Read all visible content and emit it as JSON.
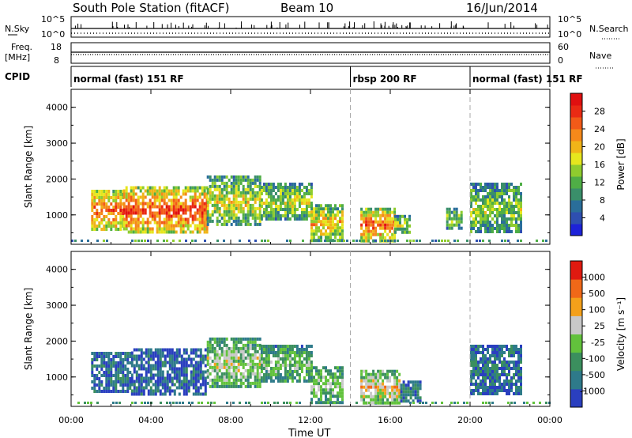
{
  "header": {
    "station": "South Pole Station (fitACF)",
    "beam": "Beam 10",
    "date": "16/Jun/2014"
  },
  "panels_top": {
    "nsky_label": "N.Sky",
    "nsky_ticks": [
      "10^5",
      "10^0"
    ],
    "nsearch_label": "N.Search",
    "nsearch_ticks": [
      "10^5",
      "10^0"
    ],
    "freq_label": "Freq.",
    "freq_unit": "[MHz]",
    "freq_ticks": [
      "18",
      "8"
    ],
    "nave_label": "Nave",
    "nave_ticks": [
      "60",
      "0"
    ],
    "cpid_label": "CPID",
    "cpid_segments": [
      {
        "label": "normal (fast) 151 RF",
        "start_h": 0,
        "end_h": 14
      },
      {
        "label": "rbsp 200 RF",
        "start_h": 14,
        "end_h": 20
      },
      {
        "label": "normal (fast) 151 RF",
        "start_h": 20,
        "end_h": 24
      }
    ]
  },
  "chart_data": [
    {
      "type": "heatmap",
      "name": "power",
      "ylabel": "Slant Range [km]",
      "xlabel": "",
      "y_ticks": [
        1000,
        2000,
        3000,
        4000
      ],
      "ylim": [
        180,
        4500
      ],
      "xlim_h": [
        0,
        24
      ],
      "colorbar": {
        "label": "Power [dB]",
        "ticks": [
          "4",
          "8",
          "12",
          "16",
          "20",
          "24",
          "28"
        ],
        "colors": [
          "#1d22d8",
          "#2e4fb0",
          "#2a6e9a",
          "#3a8f6a",
          "#4fae46",
          "#8fcc2e",
          "#e6e61e",
          "#f0b418",
          "#f5891a",
          "#f25a18",
          "#ea2a14",
          "#e01010"
        ]
      },
      "regions": [
        {
          "t0": 1.0,
          "t1": 2.6,
          "r0": 600,
          "r1": 1700,
          "level": 0.85
        },
        {
          "t0": 2.6,
          "t1": 6.8,
          "r0": 500,
          "r1": 1800,
          "level": 0.9
        },
        {
          "t0": 6.8,
          "t1": 9.5,
          "r0": 700,
          "r1": 2100,
          "level": 0.55
        },
        {
          "t0": 9.5,
          "t1": 12.0,
          "r0": 900,
          "r1": 1900,
          "level": 0.5
        },
        {
          "t0": 12.0,
          "t1": 13.6,
          "r0": 300,
          "r1": 1300,
          "level": 0.65
        },
        {
          "t0": 14.5,
          "t1": 16.2,
          "r0": 300,
          "r1": 1200,
          "level": 0.85
        },
        {
          "t0": 16.2,
          "t1": 17.0,
          "r0": 500,
          "r1": 1000,
          "level": 0.5
        },
        {
          "t0": 18.8,
          "t1": 19.6,
          "r0": 600,
          "r1": 1200,
          "level": 0.45
        },
        {
          "t0": 20.0,
          "t1": 22.5,
          "r0": 500,
          "r1": 1900,
          "level": 0.45
        }
      ]
    },
    {
      "type": "heatmap",
      "name": "velocity",
      "ylabel": "Slant Range [km]",
      "xlabel": "Time UT",
      "x_ticks": [
        "00:00",
        "04:00",
        "08:00",
        "12:00",
        "16:00",
        "20:00",
        "00:00"
      ],
      "y_ticks": [
        1000,
        2000,
        3000,
        4000
      ],
      "ylim": [
        180,
        4500
      ],
      "xlim_h": [
        0,
        24
      ],
      "colorbar": {
        "label": "Velocity [m s⁻¹]",
        "ticks": [
          "1000",
          "500",
          "100",
          "25",
          "-25",
          "-100",
          "-500",
          "-1000"
        ],
        "colors": [
          "#2a3fbf",
          "#2e7a8a",
          "#3b8f5e",
          "#62c23c",
          "#c8c8c8",
          "#f4a01a",
          "#f06818",
          "#e01a10"
        ]
      },
      "regions": [
        {
          "t0": 1.0,
          "t1": 3.0,
          "r0": 600,
          "r1": 1700,
          "level": 0.15
        },
        {
          "t0": 3.0,
          "t1": 6.8,
          "r0": 500,
          "r1": 1800,
          "level": 0.1
        },
        {
          "t0": 6.8,
          "t1": 9.5,
          "r0": 700,
          "r1": 2100,
          "level": 0.55
        },
        {
          "t0": 9.5,
          "t1": 12.0,
          "r0": 900,
          "r1": 1900,
          "level": 0.45
        },
        {
          "t0": 12.0,
          "t1": 13.6,
          "r0": 300,
          "r1": 1300,
          "level": 0.5
        },
        {
          "t0": 14.5,
          "t1": 16.5,
          "r0": 300,
          "r1": 1200,
          "level": 0.7
        },
        {
          "t0": 16.5,
          "t1": 17.5,
          "r0": 300,
          "r1": 900,
          "level": 0.2
        },
        {
          "t0": 20.0,
          "t1": 22.5,
          "r0": 500,
          "r1": 1900,
          "level": 0.15
        }
      ]
    }
  ]
}
